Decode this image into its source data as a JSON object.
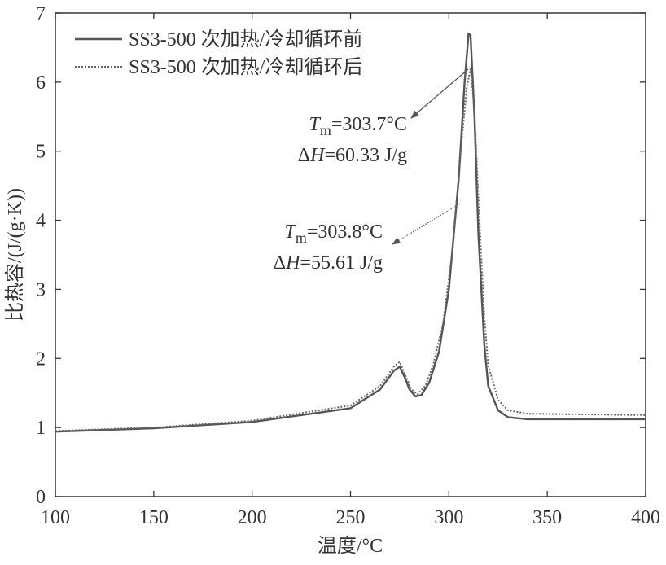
{
  "chart_data": {
    "type": "line",
    "xlabel": "温度/°C",
    "ylabel": "比热容/(J/(g·K))",
    "xlim": [
      100,
      400
    ],
    "xticks": [
      100,
      150,
      200,
      250,
      300,
      350,
      400
    ],
    "ylim": [
      0,
      7
    ],
    "yticks": [
      0,
      1,
      2,
      3,
      4,
      5,
      6,
      7
    ],
    "legend": "upper left",
    "series": [
      {
        "name": "SS3-500 次加热/冷却循环前",
        "color": "#555555",
        "style": "solid",
        "x": [
          100,
          150,
          200,
          250,
          265,
          272,
          275,
          278,
          280,
          283,
          286,
          290,
          295,
          300,
          305,
          308,
          310,
          311,
          313,
          315,
          318,
          320,
          325,
          330,
          340,
          400
        ],
        "values": [
          0.94,
          0.99,
          1.08,
          1.28,
          1.55,
          1.82,
          1.88,
          1.7,
          1.55,
          1.45,
          1.47,
          1.65,
          2.1,
          3.0,
          4.6,
          6.0,
          6.7,
          6.68,
          5.5,
          3.8,
          2.2,
          1.6,
          1.25,
          1.15,
          1.12,
          1.12
        ]
      },
      {
        "name": "SS3-500 次加热/冷却循环后",
        "color": "#666666",
        "style": "dotted",
        "x": [
          100,
          150,
          200,
          250,
          265,
          272,
          275,
          278,
          281,
          284,
          288,
          292,
          297,
          302,
          306,
          309,
          311,
          313,
          315,
          318,
          320,
          325,
          330,
          340,
          400
        ],
        "values": [
          0.95,
          1.0,
          1.1,
          1.32,
          1.6,
          1.88,
          1.95,
          1.75,
          1.55,
          1.48,
          1.6,
          1.9,
          2.5,
          3.6,
          5.0,
          5.9,
          6.2,
          5.6,
          4.3,
          2.6,
          1.9,
          1.4,
          1.25,
          1.2,
          1.18
        ]
      }
    ],
    "annotations": [
      {
        "lines": [
          [
            "T",
            "m",
            "=303.7°C"
          ],
          [
            "Δ",
            "H",
            "=60.33 J/g"
          ]
        ]
      },
      {
        "lines": [
          [
            "T",
            "m",
            "=303.8°C"
          ],
          [
            "Δ",
            "H",
            "=55.61 J/g"
          ]
        ]
      }
    ]
  }
}
